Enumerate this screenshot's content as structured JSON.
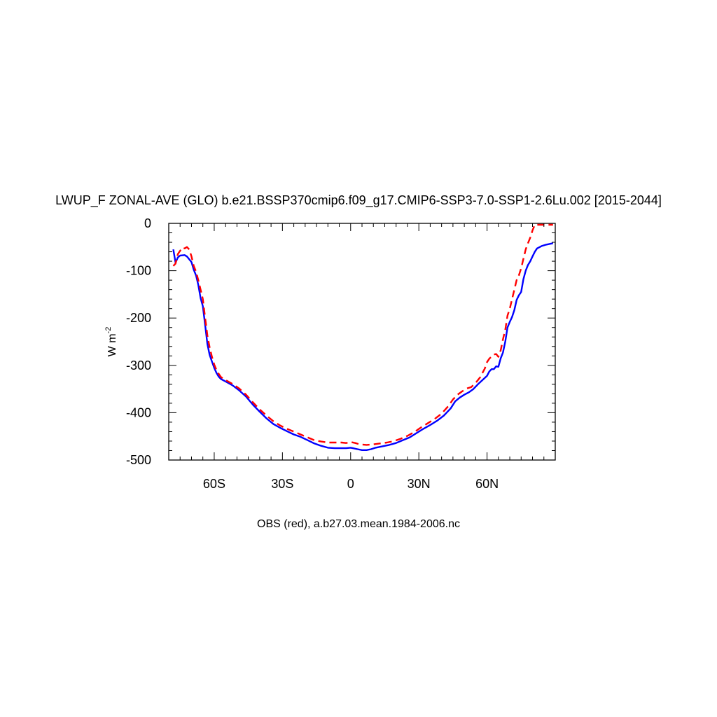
{
  "chart_data": {
    "type": "line",
    "title": "LWUP_F ZONAL-AVE (GLO) b.e21.BSSP370cmip6.f09_g17.CMIP6-SSP3-7.0-SSP1-2.6Lu.002 [2015-2044]",
    "xlabel": "",
    "ylabel_base": "W m",
    "ylabel_exponent": "-2",
    "footer": "OBS (red), a.b27.03.mean.1984-2006.nc",
    "xlim": [
      -80,
      90
    ],
    "ylim": [
      -500,
      0
    ],
    "grid": false,
    "x_ticks": [
      {
        "value": -60,
        "label": "60S"
      },
      {
        "value": -30,
        "label": "30S"
      },
      {
        "value": 0,
        "label": "0"
      },
      {
        "value": 30,
        "label": "30N"
      },
      {
        "value": 60,
        "label": "60N"
      }
    ],
    "y_ticks": [
      {
        "value": 0,
        "label": "0"
      },
      {
        "value": -100,
        "label": "-100"
      },
      {
        "value": -200,
        "label": "-200"
      },
      {
        "value": -300,
        "label": "-300"
      },
      {
        "value": -400,
        "label": "-400"
      },
      {
        "value": -500,
        "label": "-500"
      }
    ],
    "series": [
      {
        "color": "#0000ff",
        "dash": "solid",
        "points": [
          [
            -78,
            -55
          ],
          [
            -77,
            -83
          ],
          [
            -76,
            -72
          ],
          [
            -75,
            -68
          ],
          [
            -73,
            -67
          ],
          [
            -72,
            -70
          ],
          [
            -70,
            -82
          ],
          [
            -69,
            -98
          ],
          [
            -68,
            -110
          ],
          [
            -67,
            -130
          ],
          [
            -66,
            -158
          ],
          [
            -65,
            -175
          ],
          [
            -64,
            -215
          ],
          [
            -63,
            -255
          ],
          [
            -62,
            -278
          ],
          [
            -61,
            -292
          ],
          [
            -60,
            -305
          ],
          [
            -59,
            -316
          ],
          [
            -58,
            -324
          ],
          [
            -57,
            -329
          ],
          [
            -55,
            -334
          ],
          [
            -52,
            -342
          ],
          [
            -49,
            -353
          ],
          [
            -46,
            -366
          ],
          [
            -43,
            -383
          ],
          [
            -40,
            -398
          ],
          [
            -37,
            -412
          ],
          [
            -34,
            -424
          ],
          [
            -31,
            -432
          ],
          [
            -28,
            -439
          ],
          [
            -25,
            -446
          ],
          [
            -22,
            -451
          ],
          [
            -19,
            -458
          ],
          [
            -16,
            -465
          ],
          [
            -13,
            -470
          ],
          [
            -10,
            -474
          ],
          [
            -7,
            -475
          ],
          [
            -4,
            -475
          ],
          [
            -2,
            -475
          ],
          [
            0,
            -474
          ],
          [
            1,
            -475
          ],
          [
            3,
            -477
          ],
          [
            5,
            -479
          ],
          [
            7,
            -479
          ],
          [
            9,
            -477
          ],
          [
            11,
            -474
          ],
          [
            14,
            -471
          ],
          [
            17,
            -468
          ],
          [
            20,
            -464
          ],
          [
            23,
            -458
          ],
          [
            26,
            -452
          ],
          [
            29,
            -443
          ],
          [
            32,
            -434
          ],
          [
            35,
            -426
          ],
          [
            38,
            -417
          ],
          [
            41,
            -406
          ],
          [
            44,
            -391
          ],
          [
            46,
            -376
          ],
          [
            48,
            -368
          ],
          [
            50,
            -362
          ],
          [
            52,
            -357
          ],
          [
            54,
            -350
          ],
          [
            56,
            -340
          ],
          [
            58,
            -331
          ],
          [
            60,
            -322
          ],
          [
            61,
            -313
          ],
          [
            62,
            -308
          ],
          [
            63,
            -308
          ],
          [
            64,
            -302
          ],
          [
            65,
            -303
          ],
          [
            66,
            -285
          ],
          [
            67,
            -273
          ],
          [
            68,
            -250
          ],
          [
            69,
            -220
          ],
          [
            70,
            -208
          ],
          [
            71,
            -198
          ],
          [
            72,
            -183
          ],
          [
            73,
            -162
          ],
          [
            74,
            -152
          ],
          [
            75,
            -145
          ],
          [
            76,
            -118
          ],
          [
            77,
            -100
          ],
          [
            78,
            -88
          ],
          [
            79,
            -80
          ],
          [
            80,
            -70
          ],
          [
            81,
            -60
          ],
          [
            82,
            -53
          ],
          [
            84,
            -48
          ],
          [
            86,
            -45
          ],
          [
            88,
            -43
          ],
          [
            89,
            -42
          ]
        ]
      },
      {
        "color": "#ff0000",
        "dash": "dashed",
        "points": [
          [
            -78,
            -90
          ],
          [
            -77,
            -85
          ],
          [
            -76,
            -65
          ],
          [
            -75,
            -58
          ],
          [
            -74,
            -51
          ],
          [
            -73,
            -53
          ],
          [
            -72,
            -50
          ],
          [
            -71,
            -55
          ],
          [
            -70,
            -70
          ],
          [
            -69,
            -90
          ],
          [
            -68,
            -102
          ],
          [
            -67,
            -120
          ],
          [
            -66,
            -140
          ],
          [
            -65,
            -160
          ],
          [
            -64,
            -200
          ],
          [
            -63,
            -237
          ],
          [
            -62,
            -262
          ],
          [
            -61,
            -282
          ],
          [
            -60,
            -298
          ],
          [
            -59,
            -310
          ],
          [
            -58,
            -318
          ],
          [
            -57,
            -325
          ],
          [
            -55,
            -331
          ],
          [
            -52,
            -339
          ],
          [
            -49,
            -349
          ],
          [
            -46,
            -362
          ],
          [
            -43,
            -378
          ],
          [
            -40,
            -393
          ],
          [
            -37,
            -406
          ],
          [
            -34,
            -418
          ],
          [
            -31,
            -427
          ],
          [
            -28,
            -434
          ],
          [
            -25,
            -440
          ],
          [
            -22,
            -446
          ],
          [
            -19,
            -452
          ],
          [
            -16,
            -458
          ],
          [
            -13,
            -461
          ],
          [
            -10,
            -463
          ],
          [
            -7,
            -463
          ],
          [
            -4,
            -463
          ],
          [
            -2,
            -464
          ],
          [
            0,
            -462
          ],
          [
            2,
            -464
          ],
          [
            4,
            -467
          ],
          [
            7,
            -468
          ],
          [
            10,
            -467
          ],
          [
            13,
            -465
          ],
          [
            16,
            -463
          ],
          [
            19,
            -460
          ],
          [
            22,
            -455
          ],
          [
            25,
            -449
          ],
          [
            28,
            -441
          ],
          [
            31,
            -431
          ],
          [
            34,
            -422
          ],
          [
            37,
            -413
          ],
          [
            40,
            -402
          ],
          [
            43,
            -386
          ],
          [
            45,
            -372
          ],
          [
            47,
            -362
          ],
          [
            49,
            -355
          ],
          [
            51,
            -349
          ],
          [
            53,
            -346
          ],
          [
            55,
            -337
          ],
          [
            57,
            -325
          ],
          [
            59,
            -307
          ],
          [
            60,
            -293
          ],
          [
            61,
            -286
          ],
          [
            62,
            -281
          ],
          [
            63,
            -277
          ],
          [
            64,
            -276
          ],
          [
            65,
            -282
          ],
          [
            66,
            -268
          ],
          [
            67,
            -245
          ],
          [
            68,
            -225
          ],
          [
            69,
            -195
          ],
          [
            70,
            -180
          ],
          [
            71,
            -160
          ],
          [
            72,
            -140
          ],
          [
            73,
            -120
          ],
          [
            74,
            -110
          ],
          [
            75,
            -95
          ],
          [
            76,
            -75
          ],
          [
            77,
            -55
          ],
          [
            78,
            -42
          ],
          [
            79,
            -30
          ],
          [
            80,
            -15
          ],
          [
            81,
            -3
          ],
          [
            83,
            -3
          ],
          [
            86,
            -3
          ],
          [
            89,
            -3
          ]
        ]
      }
    ]
  }
}
